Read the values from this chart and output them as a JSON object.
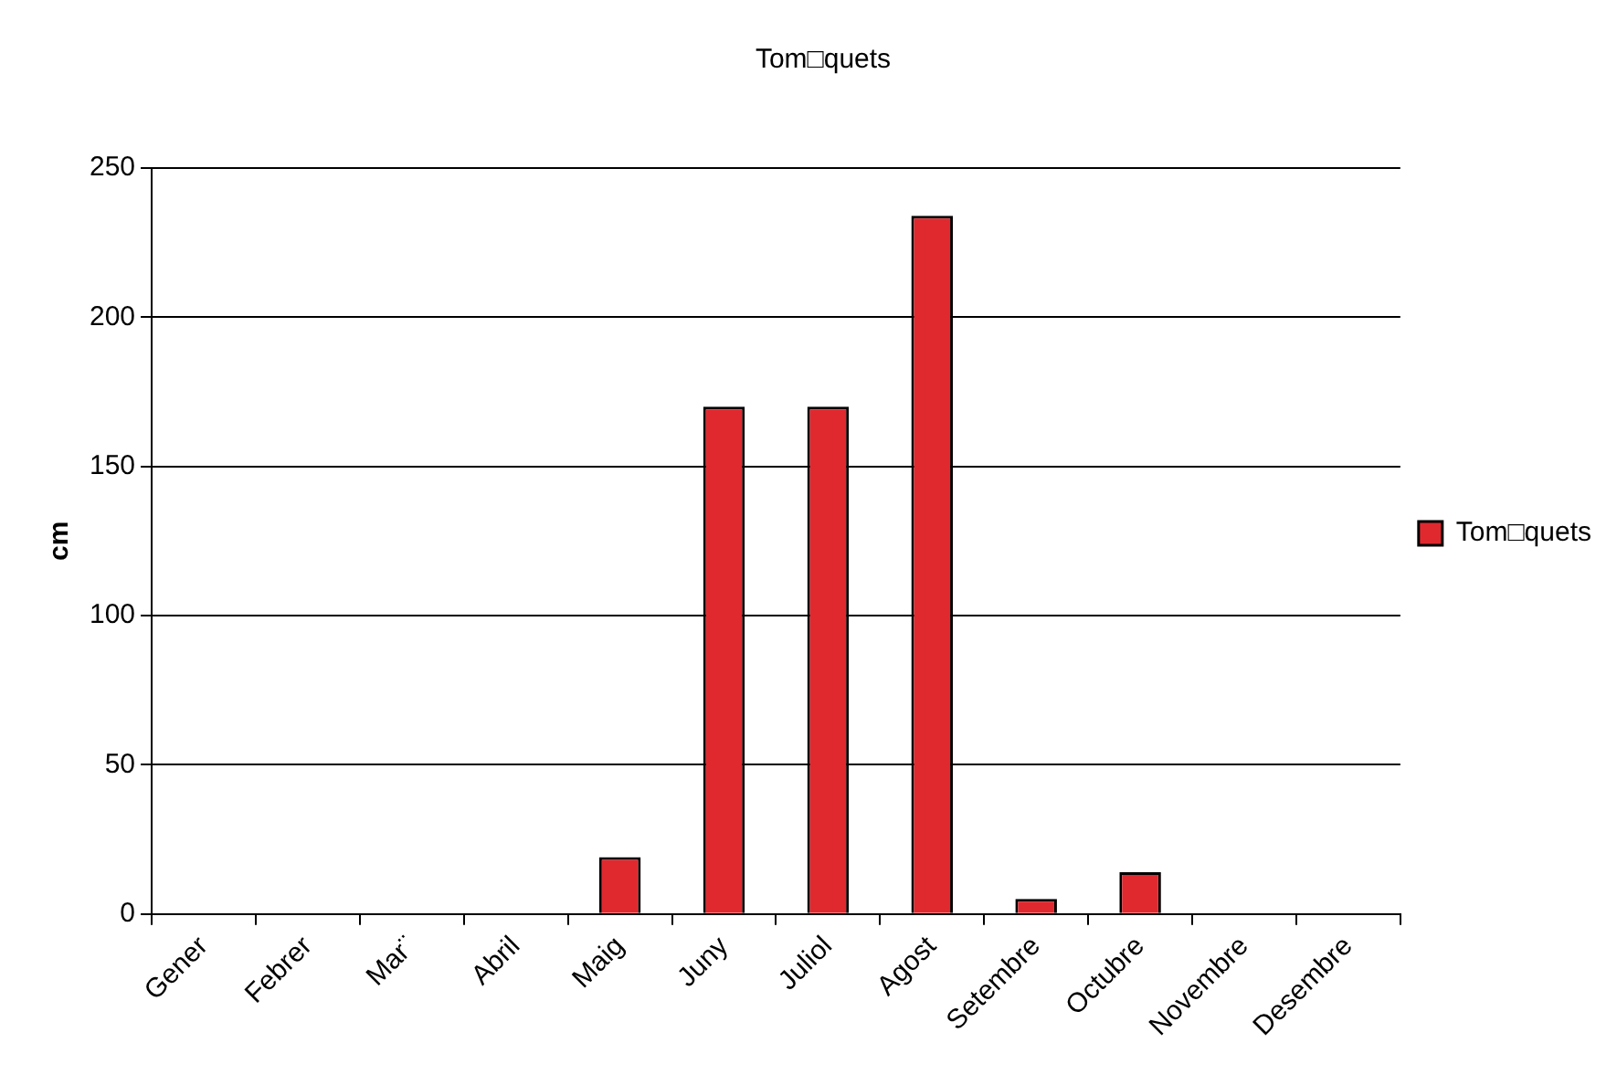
{
  "chart_data": {
    "type": "bar",
    "title": "Tom□quets",
    "ylabel": "cm",
    "categories": [
      "Gener",
      "Febrer",
      "Mar¨",
      "Abril",
      "Maig",
      "Juny",
      "Juliol",
      "Agost",
      "Setembre",
      "Octubre",
      "Novembre",
      "Desembre"
    ],
    "series": [
      {
        "name": "Tom□quets",
        "color": "#e0292f",
        "values": [
          0,
          0,
          0,
          0,
          19,
          170,
          170,
          234,
          5,
          14,
          0,
          0
        ]
      }
    ],
    "ylim": [
      0,
      250
    ],
    "yticks": [
      0,
      50,
      100,
      150,
      200,
      250
    ],
    "grid": "y",
    "legend": "right"
  }
}
